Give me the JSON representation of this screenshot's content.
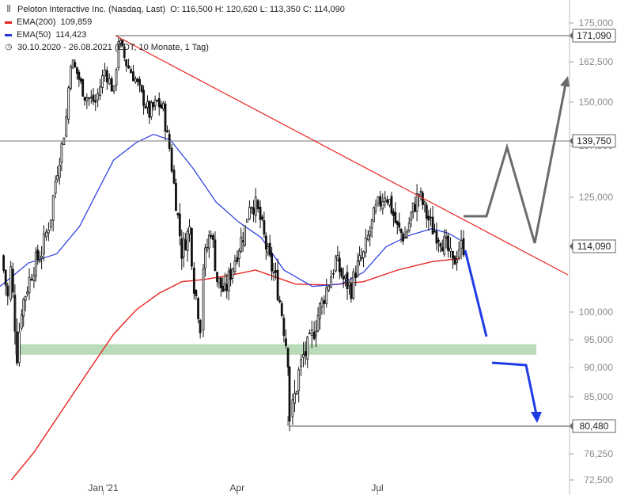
{
  "header": {
    "instrument": "Peloton Interactive Inc. (Nasdaq, Last)",
    "ohlc": "O: 116,500  H: 120,620  L: 113,350  C: 114,090",
    "ema200_label": "EMA(200)",
    "ema200_value": "109,859",
    "ema50_label": "EMA(50)",
    "ema50_value": "114,423",
    "range": "30.10.2020 - 26.08.2021 (EDT, 10 Monate, 1 Tag)"
  },
  "colors": {
    "ema200": "#e8241f",
    "ema50": "#2437e0",
    "trendline": "#e8241f",
    "support_zone": "#b9dbb9",
    "scenario_up": "#6b6b6b",
    "scenario_down": "#1f3be6",
    "candles": "#111111"
  },
  "chart_data": {
    "type": "candlestick",
    "y_axis": {
      "ylim": [
        72000,
        178000
      ],
      "ticks": [
        "175,000",
        "162,500",
        "150,000",
        "137,500",
        "125,000",
        "100,000",
        "95,000",
        "90,000",
        "85,000",
        "76,250",
        "72,500"
      ]
    },
    "x_axis": {
      "labels": [
        "Jan '21",
        "Apr",
        "Jul"
      ]
    },
    "level_tags": [
      "171,090",
      "139,750",
      "114,090",
      "80,480"
    ],
    "levels": [
      171090,
      139750,
      114090,
      80480
    ],
    "support_zone": [
      92300,
      94200
    ],
    "price_path": [
      [
        "2020-10-30",
        112000
      ],
      [
        "2020-11-03",
        103000
      ],
      [
        "2020-11-05",
        109000
      ],
      [
        "2020-11-09",
        92500
      ],
      [
        "2020-11-12",
        101000
      ],
      [
        "2020-11-17",
        107000
      ],
      [
        "2020-11-20",
        110000
      ],
      [
        "2020-11-25",
        113000
      ],
      [
        "2020-12-01",
        121000
      ],
      [
        "2020-12-04",
        129000
      ],
      [
        "2020-12-08",
        138000
      ],
      [
        "2020-12-11",
        146000
      ],
      [
        "2020-12-14",
        163000
      ],
      [
        "2020-12-18",
        159000
      ],
      [
        "2020-12-23",
        152000
      ],
      [
        "2020-12-30",
        150000
      ],
      [
        "2021-01-05",
        160000
      ],
      [
        "2021-01-11",
        153000
      ],
      [
        "2021-01-14",
        170000
      ],
      [
        "2021-01-19",
        162000
      ],
      [
        "2021-01-25",
        157000
      ],
      [
        "2021-01-29",
        152000
      ],
      [
        "2021-02-03",
        147000
      ],
      [
        "2021-02-08",
        150000
      ],
      [
        "2021-02-12",
        148000
      ],
      [
        "2021-02-16",
        137000
      ],
      [
        "2021-02-19",
        128000
      ],
      [
        "2021-02-24",
        113000
      ],
      [
        "2021-03-01",
        118000
      ],
      [
        "2021-03-04",
        106000
      ],
      [
        "2021-03-08",
        98000
      ],
      [
        "2021-03-10",
        110000
      ],
      [
        "2021-03-15",
        118000
      ],
      [
        "2021-03-19",
        107000
      ],
      [
        "2021-03-24",
        104000
      ],
      [
        "2021-03-29",
        110000
      ],
      [
        "2021-04-01",
        113000
      ],
      [
        "2021-04-06",
        118000
      ],
      [
        "2021-04-09",
        124000
      ],
      [
        "2021-04-13",
        123000
      ],
      [
        "2021-04-16",
        120000
      ],
      [
        "2021-04-21",
        112000
      ],
      [
        "2021-04-26",
        107000
      ],
      [
        "2021-04-30",
        100000
      ],
      [
        "2021-05-04",
        92000
      ],
      [
        "2021-05-05",
        82000
      ],
      [
        "2021-05-07",
        83000
      ],
      [
        "2021-05-11",
        89000
      ],
      [
        "2021-05-14",
        92000
      ],
      [
        "2021-05-18",
        94000
      ],
      [
        "2021-05-21",
        97000
      ],
      [
        "2021-05-26",
        102000
      ],
      [
        "2021-06-01",
        108000
      ],
      [
        "2021-06-04",
        111000
      ],
      [
        "2021-06-09",
        107000
      ],
      [
        "2021-06-14",
        105000
      ],
      [
        "2021-06-17",
        109000
      ],
      [
        "2021-06-22",
        112000
      ],
      [
        "2021-06-25",
        116000
      ],
      [
        "2021-06-30",
        122000
      ],
      [
        "2021-07-06",
        126000
      ],
      [
        "2021-07-09",
        124000
      ],
      [
        "2021-07-14",
        118000
      ],
      [
        "2021-07-19",
        116000
      ],
      [
        "2021-07-23",
        121000
      ],
      [
        "2021-07-28",
        126000
      ],
      [
        "2021-08-02",
        121000
      ],
      [
        "2021-08-06",
        118000
      ],
      [
        "2021-08-11",
        116000
      ],
      [
        "2021-08-16",
        113000
      ],
      [
        "2021-08-19",
        110000
      ],
      [
        "2021-08-23",
        114000
      ],
      [
        "2021-08-26",
        114090
      ]
    ],
    "series": [
      {
        "name": "EMA(200)",
        "values": [
          [
            0.02,
            72500
          ],
          [
            0.06,
            76500
          ],
          [
            0.11,
            83000
          ],
          [
            0.16,
            90000
          ],
          [
            0.2,
            96000
          ],
          [
            0.24,
            100500
          ],
          [
            0.28,
            104000
          ],
          [
            0.32,
            106500
          ],
          [
            0.36,
            107000
          ],
          [
            0.41,
            108000
          ],
          [
            0.45,
            109000
          ],
          [
            0.52,
            106000
          ],
          [
            0.58,
            105800
          ],
          [
            0.64,
            106500
          ],
          [
            0.7,
            109000
          ],
          [
            0.76,
            110800
          ],
          [
            0.81,
            111500
          ]
        ]
      },
      {
        "name": "EMA(50)",
        "values": [
          [
            0.0,
            105500
          ],
          [
            0.05,
            110500
          ],
          [
            0.1,
            112500
          ],
          [
            0.14,
            118500
          ],
          [
            0.17,
            126000
          ],
          [
            0.2,
            134000
          ],
          [
            0.24,
            139000
          ],
          [
            0.27,
            141500
          ],
          [
            0.3,
            140000
          ],
          [
            0.34,
            132000
          ],
          [
            0.38,
            124000
          ],
          [
            0.42,
            119500
          ],
          [
            0.46,
            116000
          ],
          [
            0.5,
            109000
          ],
          [
            0.55,
            105500
          ],
          [
            0.6,
            106000
          ],
          [
            0.64,
            108500
          ],
          [
            0.68,
            114000
          ],
          [
            0.72,
            116500
          ],
          [
            0.76,
            118000
          ],
          [
            0.79,
            117000
          ],
          [
            0.81,
            115500
          ]
        ]
      }
    ]
  }
}
